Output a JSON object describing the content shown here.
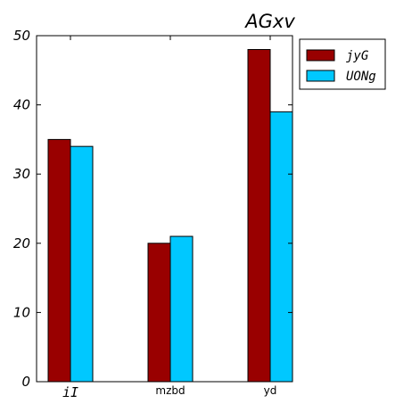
{
  "chart_data": {
    "type": "bar",
    "title": "AGxv",
    "xlabel": "",
    "ylabel": "",
    "categories": [
      "iI",
      "mzbd",
      "yd"
    ],
    "series": [
      {
        "name": "jyG",
        "values": [
          35,
          20,
          48
        ],
        "color": "#990000"
      },
      {
        "name": "UONg",
        "values": [
          34,
          21,
          39
        ],
        "color": "#00c8ff"
      }
    ],
    "ylim": [
      0,
      50
    ],
    "yticks": [
      0,
      10,
      20,
      30,
      40,
      50
    ],
    "grid": false,
    "legend_position": "outside-right-top"
  }
}
